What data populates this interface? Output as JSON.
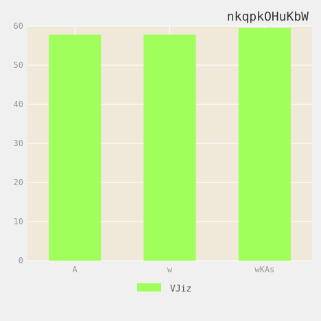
{
  "chart_data": {
    "type": "bar",
    "title": "nkqpkOHuKbW",
    "categories": [
      "A",
      "w",
      "wKAs"
    ],
    "series": [
      {
        "name": "VJiz",
        "values": [
          57.8,
          57.8,
          59.5
        ]
      }
    ],
    "ylim": [
      0,
      60
    ],
    "yticks": [
      0,
      10,
      20,
      30,
      40,
      50,
      60
    ],
    "xlabel": "",
    "ylabel": "",
    "grid": true,
    "legend_position": "bottom-center",
    "colors": {
      "bar": "#a0ff5a",
      "plot_background": "#f0e8d8",
      "gridline": "#ffffff",
      "page_background": "#f0f0f0"
    }
  }
}
